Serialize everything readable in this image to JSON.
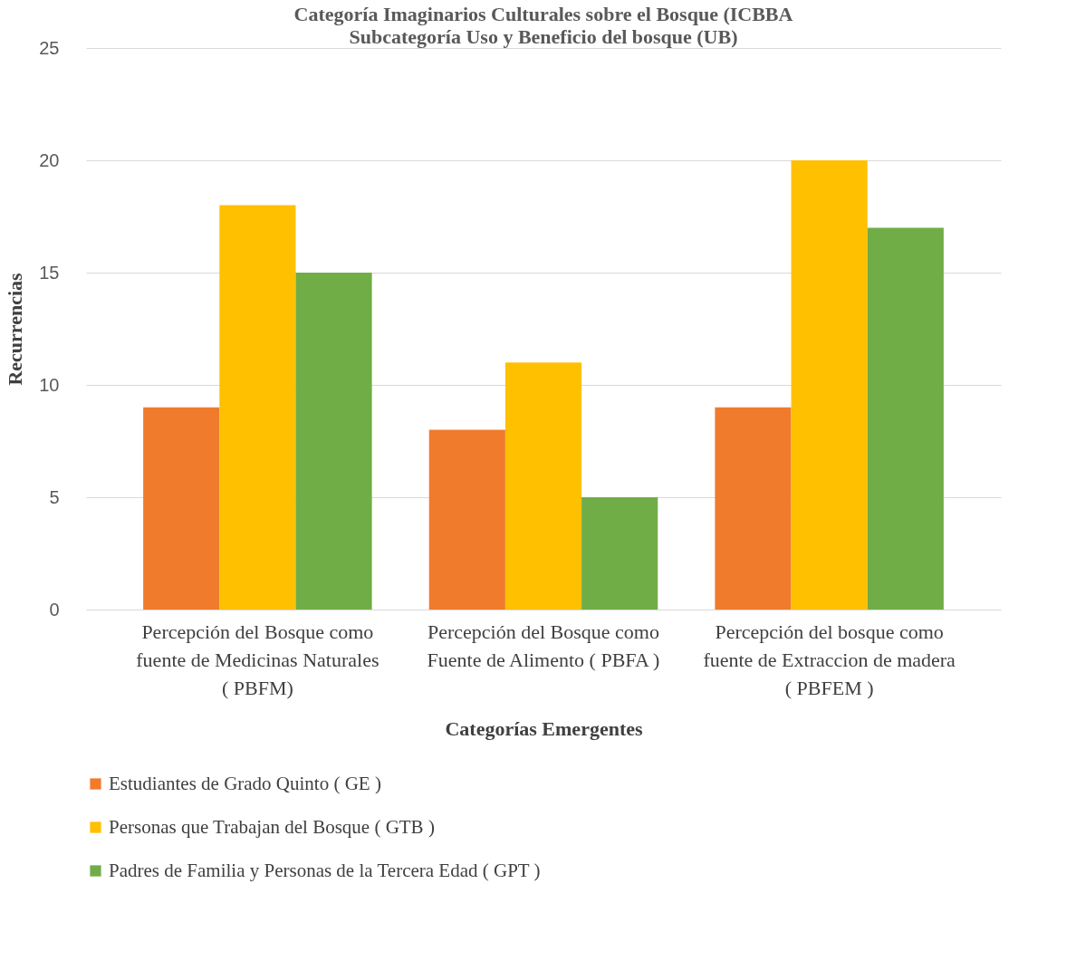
{
  "chart_data": {
    "type": "bar",
    "title": "Categoría Imaginarios Culturales sobre el Bosque (ICBBA",
    "subtitle": "Subcategoría Uso y Beneficio del bosque  (UB)",
    "xlabel": "Categorías Emergentes",
    "ylabel": "Recurrencias",
    "categories": [
      "Percepción del Bosque como fuente de Medicinas Naturales ( PBFM)",
      "Percepción del Bosque como Fuente de Alimento ( PBFA )",
      "Percepción del bosque como fuente de Extraccion de madera ( PBFEM )"
    ],
    "series": [
      {
        "name": "Estudiantes de Grado Quinto ( GE )",
        "color": "#f07b2c",
        "values": [
          9,
          8,
          9
        ]
      },
      {
        "name": "Personas que Trabajan del Bosque ( GTB )",
        "color": "#ffc000",
        "values": [
          18,
          11,
          20
        ]
      },
      {
        "name": "Padres de Familia y Personas de la Tercera Edad ( GPT )",
        "color": "#70ad47",
        "values": [
          15,
          5,
          17
        ]
      }
    ],
    "ylim": [
      0,
      25
    ],
    "yticks": [
      0,
      5,
      10,
      15,
      20,
      25
    ],
    "grid": "y",
    "legend": "bottom"
  }
}
